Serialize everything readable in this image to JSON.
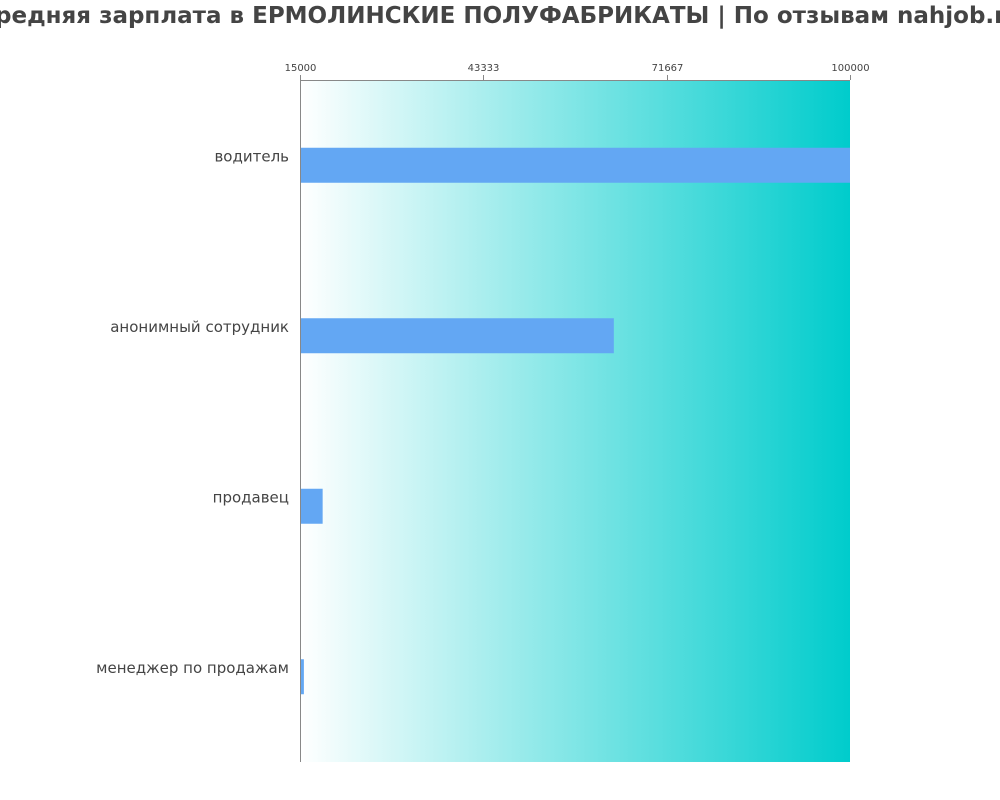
{
  "chart_data": {
    "type": "bar",
    "orientation": "horizontal",
    "title": "Средняя зарплата в ЕРМОЛИНСКИЕ ПОЛУФАБРИКАТЫ | По отзывам nahjob.ru",
    "categories": [
      "водитель",
      "анонимный сотрудник",
      "продавец",
      "менеджер по продажам"
    ],
    "values": [
      100000,
      63500,
      18500,
      15600
    ],
    "xlim": [
      15000,
      100000
    ],
    "xticks": [
      "15000",
      "43333",
      "71667",
      "100000"
    ],
    "tick_axis_position": "top",
    "grid": false,
    "legend": "none",
    "colors": {
      "bar": "#63a7f3",
      "background_gradient_start": "#ffffff",
      "background_gradient_end": "#00cccc",
      "axis": "#888888",
      "text": "#444444"
    }
  }
}
